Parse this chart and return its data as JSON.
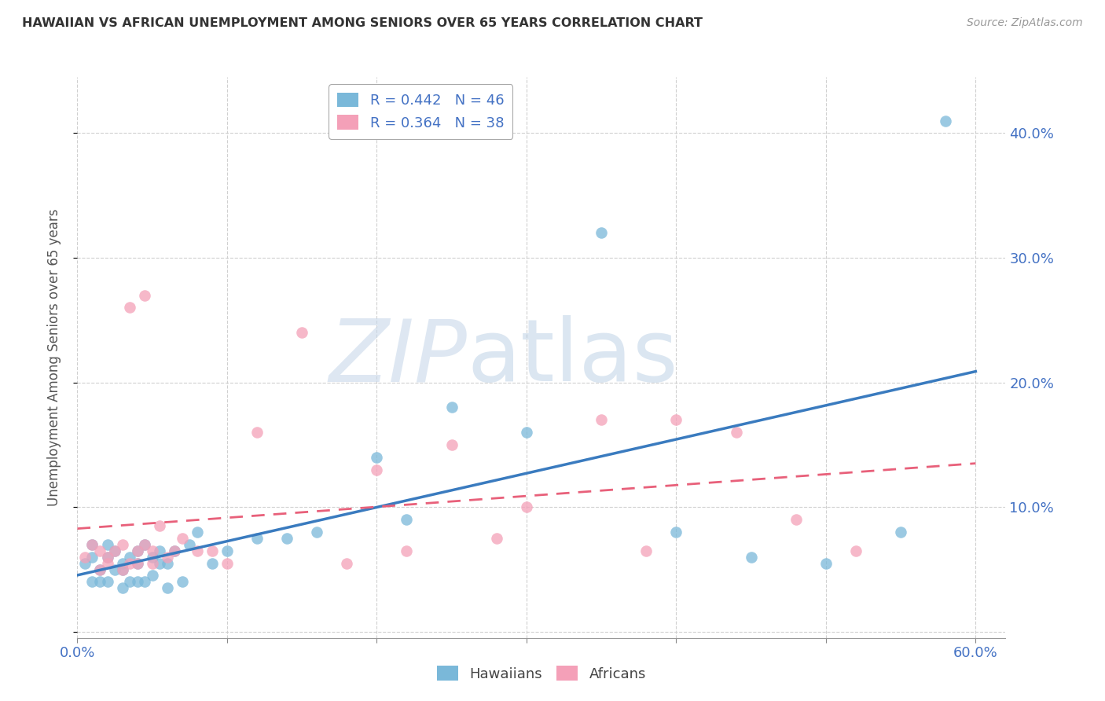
{
  "title": "HAWAIIAN VS AFRICAN UNEMPLOYMENT AMONG SENIORS OVER 65 YEARS CORRELATION CHART",
  "source": "Source: ZipAtlas.com",
  "ylabel": "Unemployment Among Seniors over 65 years",
  "xlim": [
    0.0,
    0.62
  ],
  "ylim": [
    -0.005,
    0.445
  ],
  "xticks": [
    0.0,
    0.1,
    0.2,
    0.3,
    0.4,
    0.5,
    0.6
  ],
  "yticks": [
    0.0,
    0.1,
    0.2,
    0.3,
    0.4
  ],
  "ytick_labels": [
    "",
    "10.0%",
    "20.0%",
    "30.0%",
    "40.0%"
  ],
  "xtick_labels": [
    "0.0%",
    "",
    "",
    "",
    "",
    "",
    "60.0%"
  ],
  "hawaiian_R": 0.442,
  "hawaiian_N": 46,
  "african_R": 0.364,
  "african_N": 38,
  "blue_color": "#7ab8d9",
  "pink_color": "#f4a0b8",
  "blue_line_color": "#3a7bbf",
  "pink_line_color": "#e8607a",
  "hawaiian_x": [
    0.005,
    0.01,
    0.01,
    0.01,
    0.015,
    0.015,
    0.02,
    0.02,
    0.02,
    0.025,
    0.025,
    0.03,
    0.03,
    0.03,
    0.035,
    0.035,
    0.04,
    0.04,
    0.04,
    0.045,
    0.045,
    0.05,
    0.05,
    0.055,
    0.055,
    0.06,
    0.06,
    0.065,
    0.07,
    0.075,
    0.08,
    0.09,
    0.1,
    0.12,
    0.14,
    0.16,
    0.2,
    0.22,
    0.25,
    0.3,
    0.35,
    0.4,
    0.45,
    0.5,
    0.55,
    0.58
  ],
  "hawaiian_y": [
    0.055,
    0.04,
    0.06,
    0.07,
    0.04,
    0.05,
    0.04,
    0.06,
    0.07,
    0.05,
    0.065,
    0.035,
    0.05,
    0.055,
    0.04,
    0.06,
    0.04,
    0.055,
    0.065,
    0.04,
    0.07,
    0.045,
    0.06,
    0.055,
    0.065,
    0.035,
    0.055,
    0.065,
    0.04,
    0.07,
    0.08,
    0.055,
    0.065,
    0.075,
    0.075,
    0.08,
    0.14,
    0.09,
    0.18,
    0.16,
    0.32,
    0.08,
    0.06,
    0.055,
    0.08,
    0.41
  ],
  "african_x": [
    0.005,
    0.01,
    0.015,
    0.015,
    0.02,
    0.02,
    0.025,
    0.03,
    0.03,
    0.035,
    0.035,
    0.04,
    0.04,
    0.045,
    0.045,
    0.05,
    0.05,
    0.055,
    0.06,
    0.065,
    0.07,
    0.08,
    0.09,
    0.1,
    0.12,
    0.15,
    0.18,
    0.2,
    0.22,
    0.25,
    0.28,
    0.3,
    0.35,
    0.38,
    0.4,
    0.44,
    0.48,
    0.52
  ],
  "african_y": [
    0.06,
    0.07,
    0.05,
    0.065,
    0.06,
    0.055,
    0.065,
    0.05,
    0.07,
    0.055,
    0.26,
    0.065,
    0.055,
    0.27,
    0.07,
    0.065,
    0.055,
    0.085,
    0.06,
    0.065,
    0.075,
    0.065,
    0.065,
    0.055,
    0.16,
    0.24,
    0.055,
    0.13,
    0.065,
    0.15,
    0.075,
    0.1,
    0.17,
    0.065,
    0.17,
    0.16,
    0.09,
    0.065
  ]
}
